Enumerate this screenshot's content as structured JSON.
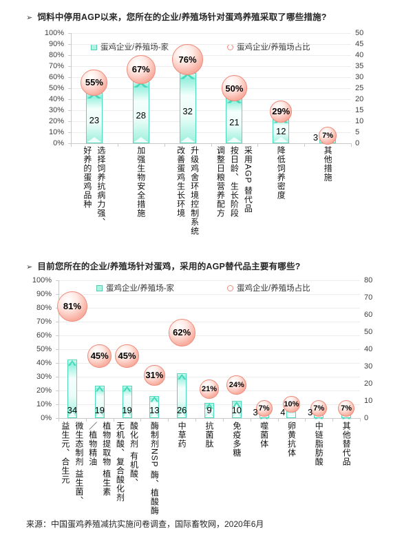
{
  "bullet": "➢",
  "source_note": "来源：中国蛋鸡养殖减抗实施问卷调查，国际畜牧网，2020年6月",
  "colors": {
    "bar_fill": "#9df0dd",
    "bar_border": "#4ed8ba",
    "bubble_fill": "#f0917f",
    "bubble_border": "#ee8a7a",
    "grid": "#ececec",
    "axis_text": "#3d3d3d",
    "title_text": "#262626"
  },
  "chart_data": [
    {
      "type": "bar",
      "subtype": "bars-with-percent-bubbles",
      "title": "饲料中停用AGP以来，您所在的企业/养殖场针对蛋鸡养殖采取了哪些措施?",
      "legend": [
        "蛋鸡企业/养殖场-家",
        "蛋鸡企业/养殖场占比"
      ],
      "legend_position": "top-inside",
      "grid": true,
      "left_axis": {
        "min": 0,
        "max": 100,
        "step": 10,
        "suffix": "%"
      },
      "right_axis": {
        "min": 0,
        "max": 50,
        "step": 5,
        "suffix": ""
      },
      "categories": [
        "选择饲养抗病力强、\n好养的蛋鸡品种",
        "加强生物安全措施",
        "升级鸡舍环境控制系统\n改善蛋鸡生长环境",
        "采用AGP 替代品\n按日龄、生长阶段\n调整日粮营养配方",
        "降低饲养密度",
        "其他措施"
      ],
      "series": [
        {
          "name": "蛋鸡企业/养殖场-家",
          "kind": "bar",
          "axis": "right",
          "values": [
            23,
            28,
            32,
            21,
            12,
            3
          ],
          "value_labels": [
            "23",
            "28",
            "32",
            "21",
            "12",
            "3"
          ]
        },
        {
          "name": "蛋鸡企业/养殖场占比",
          "kind": "bubble",
          "axis": "left",
          "values": [
            55,
            67,
            76,
            50,
            29,
            7
          ],
          "value_labels": [
            "55%",
            "67%",
            "76%",
            "50%",
            "29%",
            "7%"
          ]
        }
      ]
    },
    {
      "type": "bar",
      "subtype": "bars-with-percent-bubbles",
      "title": "目前您所在的企业/养殖场针对蛋鸡，采用的AGP替代品主要有哪些?",
      "legend": [
        "蛋鸡企业/养殖场-家",
        "蛋鸡企业/养殖场占比"
      ],
      "legend_position": "top-inside",
      "grid": true,
      "left_axis": {
        "min": 0,
        "max": 100,
        "step": 10,
        "suffix": "%"
      },
      "right_axis": {
        "min": 0,
        "max": 80,
        "step": 10,
        "suffix": ""
      },
      "categories": [
        "微生态制剂 益生菌、\n益生元、合生元",
        "植物提取物 植生素\n／植物精油",
        "酸化剂 有机酸、\n无机酸、复合酸化剂",
        "酶制剂NSP 酶、植酸酶",
        "中草药",
        "抗菌肽",
        "免疫多糖",
        "噬菌体",
        "卵黄抗体",
        "中链脂肪酸",
        "其他替代品"
      ],
      "series": [
        {
          "name": "蛋鸡企业/养殖场-家",
          "kind": "bar",
          "axis": "right",
          "values": [
            34,
            19,
            19,
            13,
            26,
            9,
            10,
            3,
            4,
            3,
            3
          ],
          "value_labels": [
            "34",
            "19",
            "19",
            "13",
            "26",
            "9",
            "10",
            "3",
            "4",
            "3",
            ""
          ]
        },
        {
          "name": "蛋鸡企业/养殖场占比",
          "kind": "bubble",
          "axis": "left",
          "values": [
            81,
            45,
            45,
            31,
            62,
            21,
            24,
            7,
            10,
            7,
            7
          ],
          "value_labels": [
            "81%",
            "45%",
            "45%",
            "31%",
            "62%",
            "21%",
            "24%",
            "7%",
            "10%",
            "7%",
            "7%"
          ]
        }
      ]
    }
  ]
}
